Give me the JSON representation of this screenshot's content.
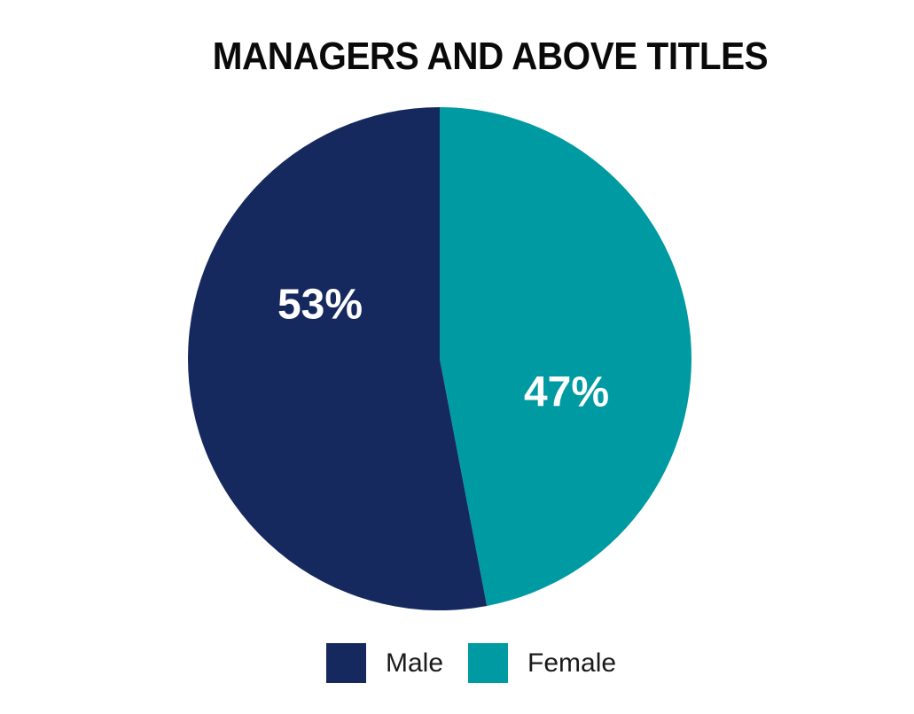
{
  "title": "MANAGERS AND ABOVE TITLES",
  "colors": {
    "male": "#16295e",
    "female": "#009aa2",
    "label_text": "#ffffff",
    "title_text": "#0a0a0a",
    "background": "#ffffff"
  },
  "chart_data": {
    "type": "pie",
    "title": "MANAGERS AND ABOVE TITLES",
    "start": "top",
    "direction": "male-slice-drawn-counterclockwise-to-left",
    "legend_position": "bottom",
    "slices": [
      {
        "label": "Male",
        "value": 53,
        "display": "53%",
        "color": "#16295e"
      },
      {
        "label": "Female",
        "value": 47,
        "display": "47%",
        "color": "#009aa2"
      }
    ]
  },
  "legend": {
    "items": [
      {
        "label": "Male",
        "color": "#16295e"
      },
      {
        "label": "Female",
        "color": "#009aa2"
      }
    ]
  }
}
